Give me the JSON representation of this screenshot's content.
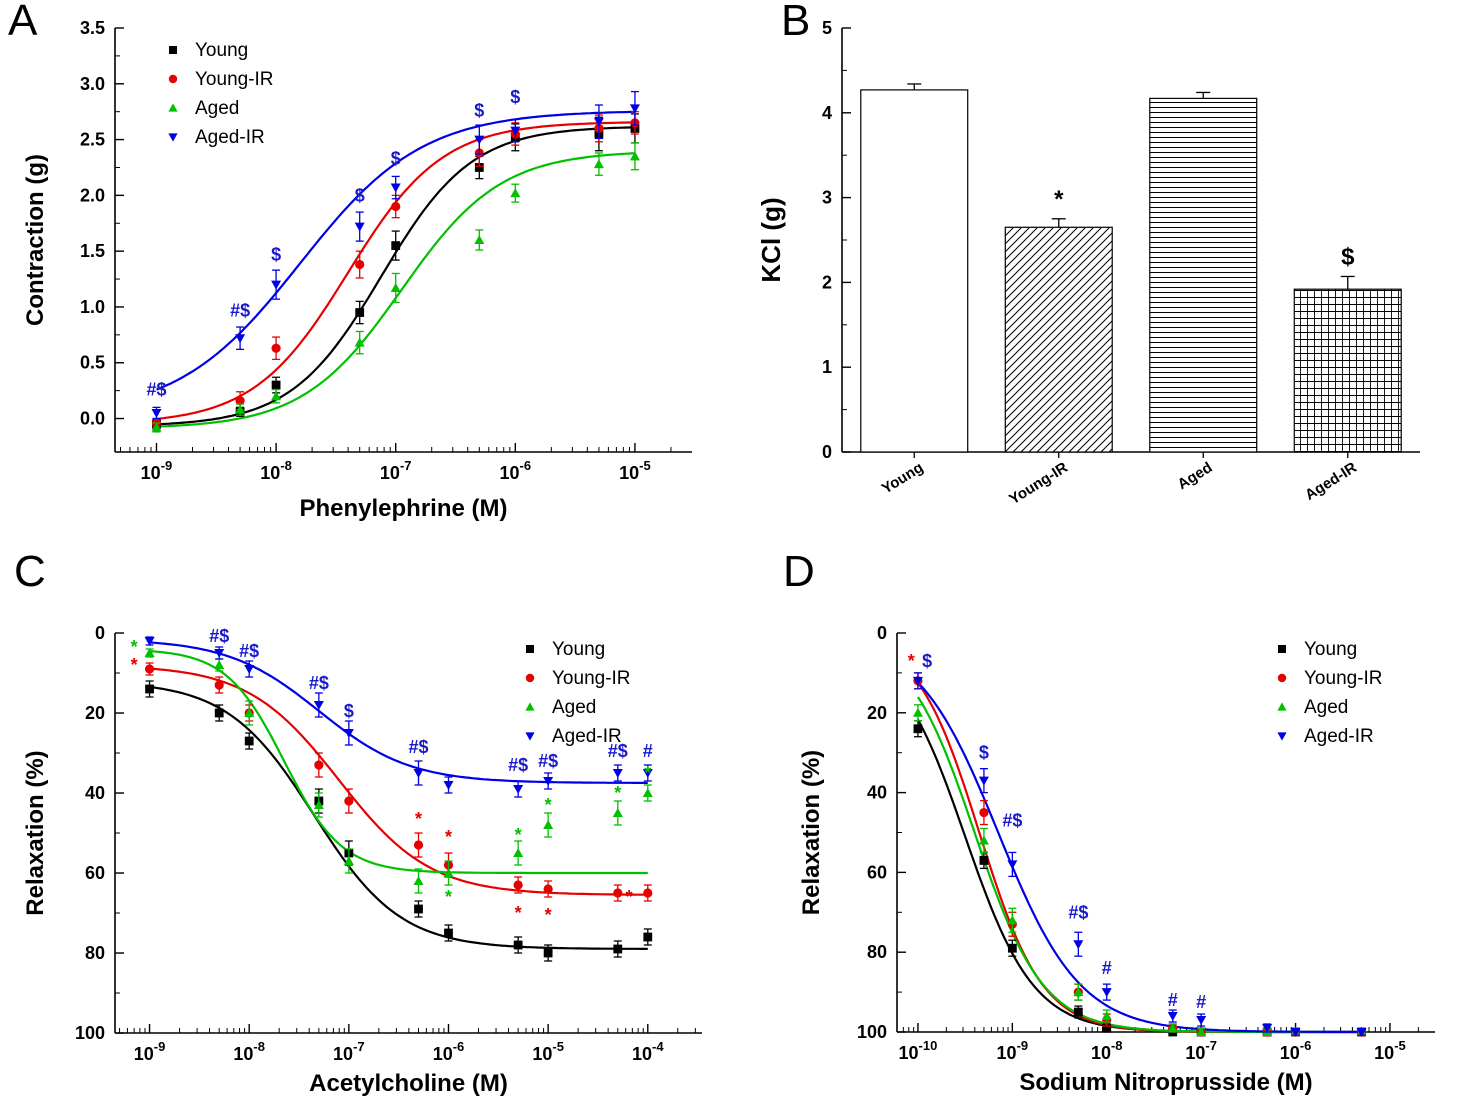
{
  "chart_data": [
    {
      "letter": "A",
      "type": "scatter-line",
      "xlabel": "Phenylephrine (M)",
      "ylabel": "Contraction (g)",
      "xscale": "log",
      "xlim": [
        4.5e-10,
        3e-05
      ],
      "ylim": [
        -0.3,
        3.5
      ],
      "xticks": [
        1e-09,
        1e-08,
        1e-07,
        1e-06,
        1e-05
      ],
      "yticks": [
        0,
        0.5,
        1,
        1.5,
        2,
        2.5,
        3,
        3.5
      ],
      "y_inverted": false,
      "series": [
        {
          "name": "Young",
          "color": "#000000",
          "marker": "square",
          "x": [
            1e-09,
            5e-09,
            1e-08,
            5e-08,
            1e-07,
            5e-07,
            1e-06,
            5e-06,
            1e-05
          ],
          "y": [
            -0.05,
            0.06,
            0.3,
            0.95,
            1.55,
            2.25,
            2.52,
            2.55,
            2.6
          ],
          "err": [
            0.04,
            0.04,
            0.07,
            0.1,
            0.13,
            0.1,
            0.12,
            0.15,
            0.13
          ],
          "fit": {
            "start": -0.07,
            "end": 2.62,
            "logec50": -7.12,
            "slope": 1.15
          }
        },
        {
          "name": "Young-IR",
          "color": "#e60000",
          "marker": "circle",
          "x": [
            1e-09,
            5e-09,
            1e-08,
            5e-08,
            1e-07,
            5e-07,
            1e-06,
            5e-06,
            1e-05
          ],
          "y": [
            -0.04,
            0.16,
            0.63,
            1.38,
            1.9,
            2.38,
            2.55,
            2.6,
            2.65
          ],
          "err": [
            0.04,
            0.08,
            0.1,
            0.12,
            0.1,
            0.12,
            0.1,
            0.12,
            0.1
          ],
          "fit": {
            "start": -0.05,
            "end": 2.66,
            "logec50": -7.4,
            "slope": 1.1
          }
        },
        {
          "name": "Aged",
          "color": "#00c000",
          "marker": "triangle-up",
          "x": [
            1e-09,
            5e-09,
            1e-08,
            5e-08,
            1e-07,
            5e-07,
            1e-06,
            5e-06,
            1e-05
          ],
          "y": [
            -0.08,
            0.08,
            0.2,
            0.68,
            1.17,
            1.6,
            2.02,
            2.28,
            2.35
          ],
          "err": [
            0.04,
            0.05,
            0.06,
            0.1,
            0.13,
            0.09,
            0.08,
            0.1,
            0.12
          ],
          "fit": {
            "start": -0.09,
            "end": 2.4,
            "logec50": -6.95,
            "slope": 1.05
          }
        },
        {
          "name": "Aged-IR",
          "color": "#0000e6",
          "marker": "triangle-down",
          "x": [
            1e-09,
            5e-09,
            1e-08,
            5e-08,
            1e-07,
            5e-07,
            1e-06,
            5e-06,
            1e-05
          ],
          "y": [
            0.05,
            0.72,
            1.2,
            1.72,
            2.07,
            2.5,
            2.58,
            2.66,
            2.78
          ],
          "err": [
            0.05,
            0.1,
            0.13,
            0.13,
            0.1,
            0.13,
            0.1,
            0.15,
            0.15
          ],
          "fit": {
            "start": 0.02,
            "end": 2.76,
            "logec50": -7.8,
            "slope": 0.85
          }
        }
      ],
      "annotations": [
        {
          "text": "#$",
          "x": 1e-09,
          "y": 0.26,
          "color": "#1a1acc"
        },
        {
          "text": "#$",
          "x": 5e-09,
          "y": 0.97,
          "color": "#1a1acc"
        },
        {
          "text": "$",
          "x": 1e-08,
          "y": 1.47,
          "color": "#1a1acc"
        },
        {
          "text": "$",
          "x": 5e-08,
          "y": 2.0,
          "color": "#1a1acc"
        },
        {
          "text": "$",
          "x": 1e-07,
          "y": 2.33,
          "color": "#1a1acc"
        },
        {
          "text": "$",
          "x": 5e-07,
          "y": 2.76,
          "color": "#1a1acc"
        },
        {
          "text": "$",
          "x": 1e-06,
          "y": 2.88,
          "color": "#1a1acc"
        }
      ]
    },
    {
      "letter": "B",
      "type": "bar",
      "ylabel": "KCl (g)",
      "categories": [
        "Young",
        "Young-IR",
        "Aged",
        "Aged-IR"
      ],
      "values": [
        4.27,
        2.65,
        4.17,
        1.92
      ],
      "errors": [
        0.07,
        0.1,
        0.07,
        0.15
      ],
      "sig": [
        "",
        "*",
        "",
        "$"
      ],
      "patterns": [
        "plain",
        "diagonal",
        "horizontal",
        "grid"
      ],
      "ylim": [
        0,
        5
      ],
      "yticks": [
        0,
        1,
        2,
        3,
        4,
        5
      ]
    },
    {
      "letter": "C",
      "type": "scatter-line",
      "xlabel": "Acetylcholine (M)",
      "ylabel": "Relaxation (%)",
      "xscale": "log",
      "xlim": [
        4.5e-10,
        0.00035
      ],
      "ylim": [
        0,
        100
      ],
      "xticks": [
        1e-09,
        1e-08,
        1e-07,
        1e-06,
        1e-05,
        0.0001
      ],
      "yticks": [
        0,
        20,
        40,
        60,
        80,
        100
      ],
      "y_inverted": true,
      "series": [
        {
          "name": "Young",
          "color": "#000000",
          "marker": "square",
          "x": [
            1e-09,
            5e-09,
            1e-08,
            5e-08,
            1e-07,
            5e-07,
            1e-06,
            5e-06,
            1e-05,
            5e-05,
            0.0001
          ],
          "y": [
            14,
            20,
            27,
            42,
            55,
            69,
            75,
            78,
            80,
            79,
            76
          ],
          "err": [
            2,
            2,
            2,
            3,
            3,
            2,
            2,
            2,
            2,
            2,
            2
          ],
          "fit": {
            "start": 12,
            "end": 79,
            "logec50": -7.35,
            "slope": 1.0
          }
        },
        {
          "name": "Young-IR",
          "color": "#e60000",
          "marker": "circle",
          "x": [
            1e-09,
            5e-09,
            1e-08,
            5e-08,
            1e-07,
            5e-07,
            1e-06,
            5e-06,
            1e-05,
            5e-05,
            0.0001
          ],
          "y": [
            9,
            13,
            20,
            33,
            42,
            53,
            58,
            63,
            64,
            65,
            65
          ],
          "err": [
            1.5,
            2,
            2,
            3,
            3,
            3,
            3,
            2,
            2,
            2,
            2
          ],
          "fit": {
            "start": 8,
            "end": 65.5,
            "logec50": -7.1,
            "slope": 0.95
          }
        },
        {
          "name": "Aged",
          "color": "#00c000",
          "marker": "triangle-up",
          "x": [
            1e-09,
            5e-09,
            1e-08,
            5e-08,
            1e-07,
            5e-07,
            1e-06,
            5e-06,
            1e-05,
            5e-05,
            0.0001
          ],
          "y": [
            5,
            8,
            20,
            43,
            57,
            62,
            60,
            55,
            48,
            45,
            40
          ],
          "err": [
            1,
            1.5,
            3,
            3,
            3,
            3,
            3,
            3,
            3,
            3,
            2
          ],
          "fit": {
            "start": 4,
            "end": 60,
            "logec50": -7.65,
            "slope": 1.5
          }
        },
        {
          "name": "Aged-IR",
          "color": "#0000e6",
          "marker": "triangle-down",
          "x": [
            1e-09,
            5e-09,
            1e-08,
            5e-08,
            1e-07,
            5e-07,
            1e-06,
            5e-06,
            1e-05,
            5e-05,
            0.0001
          ],
          "y": [
            2,
            5,
            9,
            18,
            25,
            35,
            38,
            39,
            37,
            35,
            35
          ],
          "err": [
            1,
            1.5,
            2,
            3,
            3,
            3,
            2,
            2,
            2,
            2,
            2
          ],
          "fit": {
            "start": 1.5,
            "end": 37.5,
            "logec50": -7.3,
            "slope": 0.95
          }
        }
      ],
      "annotations": [
        {
          "text": "*",
          "x": 7e-10,
          "y": 3.5,
          "color": "#00c000"
        },
        {
          "text": "*",
          "x": 7e-10,
          "y": 8.0,
          "color": "#e60000"
        },
        {
          "text": "#$",
          "x": 5e-09,
          "y": 0.8,
          "color": "#1a1acc"
        },
        {
          "text": "#$",
          "x": 1e-08,
          "y": 4.5,
          "color": "#1a1acc"
        },
        {
          "text": "#$",
          "x": 5e-08,
          "y": 12.5,
          "color": "#1a1acc"
        },
        {
          "text": "$",
          "x": 1e-07,
          "y": 19.5,
          "color": "#1a1acc"
        },
        {
          "text": "#$",
          "x": 5e-07,
          "y": 28.5,
          "color": "#1a1acc"
        },
        {
          "text": "#$",
          "x": 5e-06,
          "y": 33,
          "color": "#1a1acc"
        },
        {
          "text": "#$",
          "x": 1e-05,
          "y": 32,
          "color": "#1a1acc"
        },
        {
          "text": "#$",
          "x": 5e-05,
          "y": 29.5,
          "color": "#1a1acc"
        },
        {
          "text": "#",
          "x": 0.0001,
          "y": 29.5,
          "color": "#1a1acc"
        },
        {
          "text": "*",
          "x": 5e-07,
          "y": 46.5,
          "color": "#e60000"
        },
        {
          "text": "*",
          "x": 1e-06,
          "y": 51,
          "color": "#e60000"
        },
        {
          "text": "*",
          "x": 5e-06,
          "y": 70,
          "color": "#e60000"
        },
        {
          "text": "*",
          "x": 1e-05,
          "y": 70.5,
          "color": "#e60000"
        },
        {
          "text": "*",
          "x": 6.5e-05,
          "y": 66,
          "color": "#e60000"
        },
        {
          "text": "*",
          "x": 1e-06,
          "y": 66,
          "color": "#00c000"
        },
        {
          "text": "*",
          "x": 5e-06,
          "y": 50.5,
          "color": "#00c000"
        },
        {
          "text": "*",
          "x": 1e-05,
          "y": 43,
          "color": "#00c000"
        },
        {
          "text": "*",
          "x": 5e-05,
          "y": 40,
          "color": "#00c000"
        },
        {
          "text": "*",
          "x": 0.0001,
          "y": 35,
          "color": "#00c000"
        }
      ]
    },
    {
      "letter": "D",
      "type": "scatter-line",
      "xlabel": "Sodium Nitroprusside (M)",
      "ylabel": "Relaxation (%)",
      "xscale": "log",
      "xlim": [
        6e-11,
        3e-05
      ],
      "ylim": [
        0,
        100
      ],
      "xticks": [
        1e-10,
        1e-09,
        1e-08,
        1e-07,
        1e-06,
        1e-05
      ],
      "yticks": [
        0,
        20,
        40,
        60,
        80,
        100
      ],
      "y_inverted": true,
      "series": [
        {
          "name": "Young",
          "color": "#000000",
          "marker": "square",
          "x": [
            1e-10,
            5e-10,
            1e-09,
            5e-09,
            1e-08,
            5e-08,
            1e-07,
            5e-07,
            1e-06,
            5e-06
          ],
          "y": [
            24,
            57,
            79,
            95,
            99,
            100,
            100,
            100,
            100,
            100
          ],
          "err": [
            2,
            2,
            2,
            1.5,
            1,
            0.8,
            0.8,
            0.8,
            0.8,
            0.8
          ],
          "fit": {
            "start": 2,
            "end": 100,
            "logec50": -9.5,
            "slope": 1.2
          }
        },
        {
          "name": "Young-IR",
          "color": "#e60000",
          "marker": "circle",
          "x": [
            1e-10,
            5e-10,
            1e-09,
            5e-09,
            1e-08,
            5e-08,
            1e-07,
            5e-07,
            1e-06,
            5e-06
          ],
          "y": [
            12,
            45,
            73,
            90,
            97,
            99,
            100,
            100,
            100,
            100
          ],
          "err": [
            2,
            3,
            3,
            2,
            1.5,
            1,
            0.8,
            0.8,
            0.8,
            0.8
          ],
          "fit": {
            "start": 0,
            "end": 100,
            "logec50": -9.35,
            "slope": 1.3
          }
        },
        {
          "name": "Aged",
          "color": "#00c000",
          "marker": "triangle-up",
          "x": [
            1e-10,
            5e-10,
            1e-09,
            5e-09,
            1e-08,
            5e-08,
            1e-07,
            5e-07,
            1e-06,
            5e-06
          ],
          "y": [
            20,
            52,
            72,
            90,
            96,
            99,
            100,
            100,
            100,
            100
          ],
          "err": [
            2,
            3,
            3,
            2,
            1.5,
            1,
            0.8,
            0.8,
            0.8,
            0.8
          ],
          "fit": {
            "start": 0,
            "end": 100,
            "logec50": -9.4,
            "slope": 1.2
          }
        },
        {
          "name": "Aged-IR",
          "color": "#0000e6",
          "marker": "triangle-down",
          "x": [
            1e-10,
            5e-10,
            1e-09,
            5e-09,
            1e-08,
            5e-08,
            1e-07,
            5e-07,
            1e-06,
            5e-06
          ],
          "y": [
            12,
            37,
            58,
            78,
            90,
            96,
            97,
            99,
            100,
            100
          ],
          "err": [
            2,
            3,
            3,
            3,
            2,
            1.5,
            1.5,
            1,
            0.8,
            0.8
          ],
          "fit": {
            "start": 0,
            "end": 100,
            "logec50": -9.15,
            "slope": 1.0
          }
        }
      ],
      "annotations": [
        {
          "text": "*",
          "x": 8.5e-11,
          "y": 7,
          "color": "#e60000"
        },
        {
          "text": "$",
          "x": 1.25e-10,
          "y": 7,
          "color": "#1a1acc"
        },
        {
          "text": "$",
          "x": 5e-10,
          "y": 30,
          "color": "#1a1acc"
        },
        {
          "text": "#$",
          "x": 1e-09,
          "y": 47,
          "color": "#1a1acc"
        },
        {
          "text": "#$",
          "x": 5e-09,
          "y": 70,
          "color": "#1a1acc"
        },
        {
          "text": "#",
          "x": 1e-08,
          "y": 84,
          "color": "#1a1acc"
        },
        {
          "text": "#",
          "x": 5e-08,
          "y": 92,
          "color": "#1a1acc"
        },
        {
          "text": "#",
          "x": 1e-07,
          "y": 92.5,
          "color": "#1a1acc"
        }
      ]
    }
  ]
}
